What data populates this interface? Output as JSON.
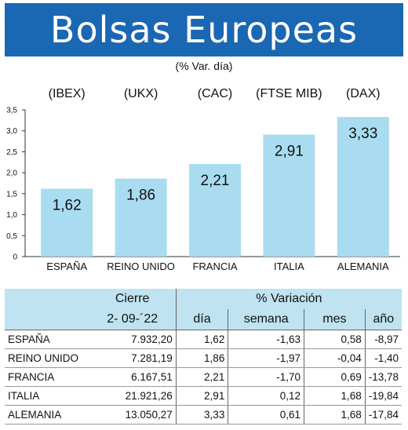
{
  "title": "Bolsas Europeas",
  "subtitle": "(% Var. día)",
  "colors": {
    "header_bg": "#1a67b3",
    "bar": "#a9dcf0",
    "table_header_bg": "#bfe3f1"
  },
  "chart_data": {
    "type": "bar",
    "title": "Bolsas Europeas",
    "subtitle": "(% Var. día)",
    "indices": [
      "(IBEX)",
      "(UKX)",
      "(CAC)",
      "(FTSE MIB)",
      "(DAX)"
    ],
    "categories": [
      "ESPAÑA",
      "REINO UNIDO",
      "FRANCIA",
      "ITALIA",
      "ALEMANIA"
    ],
    "values": [
      1.62,
      1.86,
      2.21,
      2.91,
      3.33
    ],
    "value_labels": [
      "1,62",
      "1,86",
      "2,21",
      "2,91",
      "3,33"
    ],
    "yticks": [
      "0",
      "0,5",
      "1,0",
      "1,5",
      "2,0",
      "2,5",
      "3,0",
      "3,5"
    ],
    "ylim": [
      0,
      3.5
    ],
    "grid": false,
    "xlabel": "",
    "ylabel": ""
  },
  "table": {
    "header1": {
      "cierre": "Cierre",
      "variacion": "% Variación"
    },
    "header2": {
      "date": "2- 09-´22",
      "dia": "día",
      "semana": "semana",
      "mes": "mes",
      "ano": "año"
    },
    "rows": [
      {
        "country": "ESPAÑA",
        "cierre": "7.932,20",
        "dia": "1,62",
        "semana": "-1,63",
        "mes": "0,58",
        "ano": "-8,97"
      },
      {
        "country": "REINO UNIDO",
        "cierre": "7.281,19",
        "dia": "1,86",
        "semana": "-1,97",
        "mes": "-0,04",
        "ano": "-1,40"
      },
      {
        "country": "FRANCIA",
        "cierre": "6.167,51",
        "dia": "2,21",
        "semana": "-1,70",
        "mes": "0,69",
        "ano": "-13,78"
      },
      {
        "country": "ITALIA",
        "cierre": "21.921,26",
        "dia": "2,91",
        "semana": "0,12",
        "mes": "1,68",
        "ano": "-19,84"
      },
      {
        "country": "ALEMANIA",
        "cierre": "13.050,27",
        "dia": "3,33",
        "semana": "0,61",
        "mes": "1,68",
        "ano": "-17,84"
      }
    ]
  }
}
